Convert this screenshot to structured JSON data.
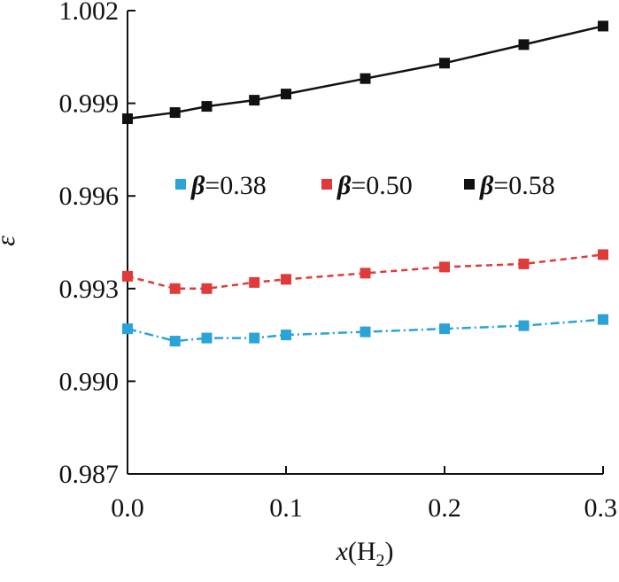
{
  "chart_data": {
    "type": "line",
    "ylabel": "ε",
    "xlabel": {
      "var": "x",
      "open": "(H",
      "sub": "2",
      "close": ")"
    },
    "xlim": [
      0.0,
      0.3
    ],
    "ylim": [
      0.987,
      1.002
    ],
    "xticks": [
      0.0,
      0.1,
      0.2,
      0.3
    ],
    "xtick_labels": [
      "0.0",
      "0.1",
      "0.2",
      "0.3"
    ],
    "yticks": [
      0.987,
      0.99,
      0.993,
      0.996,
      0.999,
      1.002
    ],
    "ytick_labels": [
      "0.987",
      "0.990",
      "0.993",
      "0.996",
      "0.999",
      "1.002"
    ],
    "grid": false,
    "legend": "center",
    "x": [
      0.0,
      0.03,
      0.05,
      0.08,
      0.1,
      0.15,
      0.2,
      0.25,
      0.3
    ],
    "series": [
      {
        "name_prefix": "β",
        "name_suffix": "=0.38",
        "color": "#2aa3d8",
        "dash": "dashdot",
        "values": [
          0.9917,
          0.9913,
          0.9914,
          0.9914,
          0.9915,
          0.9916,
          0.9917,
          0.9918,
          0.992
        ]
      },
      {
        "name_prefix": "β",
        "name_suffix": "=0.50",
        "color": "#e03a3a",
        "dash": "dashed",
        "values": [
          0.9934,
          0.993,
          0.993,
          0.9932,
          0.9933,
          0.9935,
          0.9937,
          0.9938,
          0.9941
        ]
      },
      {
        "name_prefix": "β",
        "name_suffix": "=0.58",
        "color": "#111111",
        "dash": "solid",
        "values": [
          0.9985,
          0.9987,
          0.9989,
          0.9991,
          0.9993,
          0.9998,
          1.0003,
          1.0009,
          1.0015
        ]
      }
    ]
  }
}
